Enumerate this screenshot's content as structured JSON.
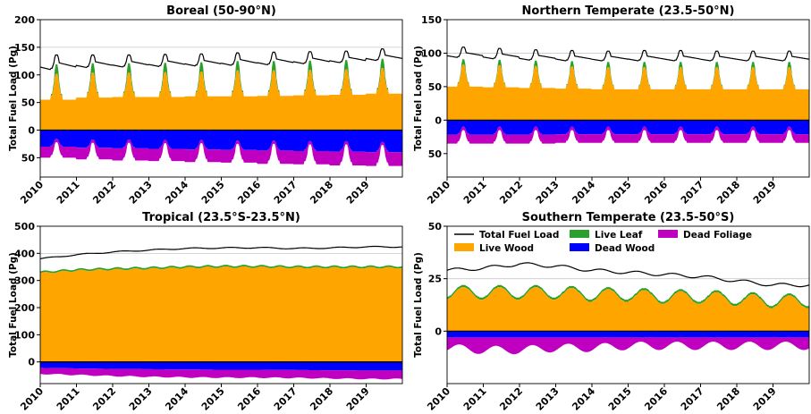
{
  "colors": {
    "total": "#000000",
    "live_wood": "#FFA500",
    "live_leaf": "#2CA02C",
    "dead_wood": "#0000FF",
    "dead_foliage": "#C000C0"
  },
  "legend": [
    {
      "key": "total",
      "label": "Total Fuel Load",
      "kind": "line"
    },
    {
      "key": "live_wood",
      "label": "Live Wood",
      "kind": "patch"
    },
    {
      "key": "live_leaf",
      "label": "Live Leaf",
      "kind": "patch"
    },
    {
      "key": "dead_wood",
      "label": "Dead Wood",
      "kind": "patch"
    },
    {
      "key": "dead_foliage",
      "label": "Dead Foliage",
      "kind": "patch"
    }
  ],
  "chart_data": [
    {
      "id": "boreal",
      "type": "area",
      "title": "Boreal (50-90°N)",
      "ylabel": "Total Fuel Load (Pg)",
      "x_ticks": [
        "2010",
        "2011",
        "2012",
        "2013",
        "2014",
        "2015",
        "2016",
        "2017",
        "2018",
        "2019"
      ],
      "y_ticks": [
        {
          "v": 200,
          "t": "200"
        },
        {
          "v": 150,
          "t": "150"
        },
        {
          "v": 100,
          "t": "100"
        },
        {
          "v": 50,
          "t": "50"
        },
        {
          "v": 0,
          "t": "0"
        },
        {
          "v": -50,
          "t": "50"
        }
      ],
      "ylim": [
        -85,
        200
      ],
      "grid_at": [
        150
      ],
      "seasonal": true,
      "years": [
        2010,
        2011,
        2012,
        2013,
        2014,
        2015,
        2016,
        2017,
        2018,
        2019
      ],
      "total_peak": [
        136,
        136,
        136,
        137,
        138,
        140,
        141,
        142,
        143,
        147
      ],
      "total_base": [
        107,
        111,
        112,
        113,
        114,
        115,
        116,
        118,
        120,
        124
      ],
      "wood_base": [
        55,
        59,
        60,
        60,
        61,
        61,
        62,
        63,
        64,
        66
      ],
      "wood_peak": [
        102,
        104,
        104,
        105,
        106,
        108,
        108,
        109,
        110,
        112
      ],
      "leaf_peak": [
        17,
        17,
        17,
        17,
        17,
        17,
        17,
        17,
        17,
        17
      ],
      "deadwood_base": [
        30,
        32,
        33,
        34,
        35,
        36,
        37,
        38,
        39,
        40
      ],
      "deadwood_peak": [
        16,
        17,
        17,
        18,
        18,
        19,
        19,
        20,
        20,
        21
      ],
      "deadfol_base": [
        20,
        21,
        22,
        22,
        23,
        23,
        24,
        24,
        25,
        25
      ],
      "deadfol_peak": [
        6,
        6,
        6,
        6,
        6,
        6,
        6,
        6,
        6,
        6
      ]
    },
    {
      "id": "northern_temperate",
      "type": "area",
      "title": "Northern Temperate (23.5-50°N)",
      "ylabel": "Total Fuel Load (Pg)",
      "x_ticks": [
        "2010",
        "2011",
        "2012",
        "2013",
        "2014",
        "2015",
        "2016",
        "2017",
        "2018",
        "2019"
      ],
      "y_ticks": [
        {
          "v": 150,
          "t": "150"
        },
        {
          "v": 100,
          "t": "100"
        },
        {
          "v": 50,
          "t": "50"
        },
        {
          "v": 0,
          "t": "0"
        },
        {
          "v": -50,
          "t": "50"
        }
      ],
      "ylim": [
        -85,
        150
      ],
      "grid_at": [
        100
      ],
      "seasonal": true,
      "years": [
        2010,
        2011,
        2012,
        2013,
        2014,
        2015,
        2016,
        2017,
        2018,
        2019
      ],
      "total_peak": [
        109,
        107,
        105,
        104,
        103,
        104,
        104,
        103,
        103,
        103
      ],
      "total_base": [
        92,
        90,
        88,
        87,
        87,
        87,
        87,
        87,
        87,
        87
      ],
      "wood_base": [
        50,
        49,
        48,
        47,
        46,
        46,
        46,
        46,
        46,
        46
      ],
      "wood_peak": [
        83,
        82,
        81,
        80,
        79,
        79,
        79,
        79,
        79,
        79
      ],
      "leaf_peak": [
        8,
        8,
        8,
        8,
        8,
        8,
        8,
        8,
        8,
        8
      ],
      "deadwood_base": [
        22,
        22,
        22,
        21,
        21,
        21,
        21,
        21,
        21,
        21
      ],
      "deadwood_peak": [
        10,
        10,
        10,
        10,
        10,
        10,
        10,
        10,
        10,
        10
      ],
      "deadfol_base": [
        13,
        13,
        13,
        13,
        13,
        13,
        13,
        13,
        13,
        13
      ],
      "deadfol_peak": [
        5,
        5,
        5,
        5,
        5,
        5,
        5,
        5,
        5,
        5
      ]
    },
    {
      "id": "tropical",
      "type": "area",
      "title": "Tropical (23.5°S-23.5°N)",
      "ylabel": "Total Fuel Load (Pg)",
      "x_ticks": [
        "2010",
        "2011",
        "2012",
        "2013",
        "2014",
        "2015",
        "2016",
        "2017",
        "2018",
        "2019"
      ],
      "y_ticks": [
        {
          "v": 500,
          "t": "500"
        },
        {
          "v": 400,
          "t": "400"
        },
        {
          "v": 300,
          "t": "300"
        },
        {
          "v": 200,
          "t": "200"
        },
        {
          "v": 100,
          "t": "100"
        },
        {
          "v": 0,
          "t": "0"
        }
      ],
      "ylim": [
        -80,
        500
      ],
      "grid_at": [
        400
      ],
      "seasonal": false,
      "years": [
        2010,
        2011,
        2012,
        2013,
        2014,
        2015,
        2016,
        2017,
        2018,
        2019
      ],
      "total": [
        380,
        395,
        405,
        412,
        418,
        420,
        421,
        418,
        420,
        424
      ],
      "live_wood": [
        327,
        336,
        340,
        343,
        347,
        349,
        349,
        347,
        347,
        347
      ],
      "live_leaf": [
        6,
        6,
        6,
        6,
        6,
        6,
        6,
        6,
        6,
        6
      ],
      "dead_wood": [
        22,
        24,
        26,
        27,
        28,
        29,
        29,
        30,
        31,
        32
      ],
      "dead_foliage": [
        22,
        24,
        26,
        28,
        29,
        29,
        29,
        29,
        30,
        31
      ]
    },
    {
      "id": "southern_temperate",
      "type": "area",
      "title": "Southern Temperate (23.5-50°S)",
      "ylabel": "Total Fuel Load (Pg)",
      "x_ticks": [
        "2010",
        "2011",
        "2012",
        "2013",
        "2014",
        "2015",
        "2016",
        "2017",
        "2018",
        "2019"
      ],
      "y_ticks": [
        {
          "v": 50,
          "t": "50"
        },
        {
          "v": 25,
          "t": "25"
        },
        {
          "v": 0,
          "t": "0"
        }
      ],
      "ylim": [
        -25,
        50
      ],
      "grid_at": [
        25
      ],
      "seasonal": false,
      "smooth_wave": true,
      "legend_in_panel": true,
      "years": [
        2010,
        2011,
        2012,
        2013,
        2014,
        2015,
        2016,
        2017,
        2018,
        2019
      ],
      "total": [
        29,
        30,
        32,
        31,
        29,
        28,
        27,
        26,
        24,
        22
      ],
      "live_wood_mid": [
        18,
        18,
        18,
        18,
        17,
        17,
        16,
        16,
        15,
        14
      ],
      "live_wood_amp": [
        3,
        3,
        3,
        3,
        3,
        3,
        3,
        3,
        3,
        3
      ],
      "live_leaf": [
        1,
        1,
        1,
        1,
        1,
        1,
        1,
        1,
        1,
        1
      ],
      "dead_wood": [
        3,
        3,
        3,
        3,
        3,
        3,
        3,
        3,
        3,
        3
      ],
      "dead_foliage_mid": [
        5,
        6,
        6,
        5,
        5,
        4,
        4,
        4,
        4,
        4
      ],
      "dead_foliage_amp": [
        2,
        2,
        2,
        2,
        2,
        2,
        2,
        2,
        2,
        2
      ]
    }
  ]
}
